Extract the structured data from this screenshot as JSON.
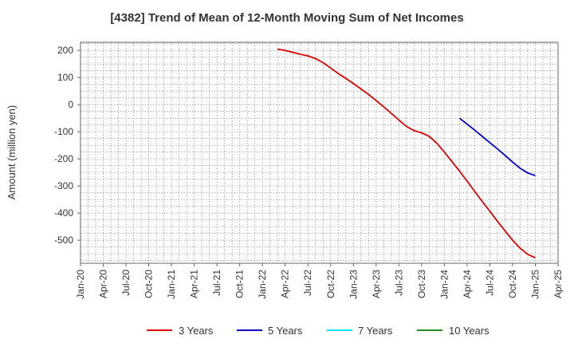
{
  "chart_data": {
    "type": "line",
    "title": "[4382]  Trend of Mean of 12-Month Moving Sum of Net Incomes",
    "xlabel": "",
    "ylabel": "Amount (million yen)",
    "ylim": [
      -585,
      230
    ],
    "yticks": [
      200,
      100,
      0,
      -100,
      -200,
      -300,
      -400,
      -500
    ],
    "xticks": [
      "Jan-20",
      "Apr-20",
      "Jul-20",
      "Oct-20",
      "Jan-21",
      "Apr-21",
      "Jul-21",
      "Oct-21",
      "Jan-22",
      "Apr-22",
      "Jul-22",
      "Oct-22",
      "Jan-23",
      "Apr-23",
      "Jul-23",
      "Oct-23",
      "Jan-24",
      "Apr-24",
      "Jul-24",
      "Oct-24",
      "Jan-25",
      "Apr-25"
    ],
    "grid": true,
    "legend_position": "bottom",
    "series": [
      {
        "name": "3 Years",
        "color": "#dd0000",
        "points": [
          [
            "Mar-22",
            205
          ],
          [
            "Apr-22",
            200
          ],
          [
            "May-22",
            193
          ],
          [
            "Jun-22",
            186
          ],
          [
            "Jul-22",
            180
          ],
          [
            "Aug-22",
            170
          ],
          [
            "Sep-22",
            155
          ],
          [
            "Oct-22",
            135
          ],
          [
            "Nov-22",
            115
          ],
          [
            "Dec-22",
            97
          ],
          [
            "Jan-23",
            78
          ],
          [
            "Feb-23",
            58
          ],
          [
            "Mar-23",
            38
          ],
          [
            "Apr-23",
            15
          ],
          [
            "May-23",
            -8
          ],
          [
            "Jun-23",
            -32
          ],
          [
            "Jul-23",
            -57
          ],
          [
            "Aug-23",
            -80
          ],
          [
            "Sep-23",
            -96
          ],
          [
            "Oct-23",
            -104
          ],
          [
            "Nov-23",
            -117
          ],
          [
            "Dec-23",
            -142
          ],
          [
            "Jan-24",
            -175
          ],
          [
            "Feb-24",
            -210
          ],
          [
            "Mar-24",
            -245
          ],
          [
            "Apr-24",
            -282
          ],
          [
            "May-24",
            -320
          ],
          [
            "Jun-24",
            -357
          ],
          [
            "Jul-24",
            -393
          ],
          [
            "Aug-24",
            -430
          ],
          [
            "Sep-24",
            -465
          ],
          [
            "Oct-24",
            -500
          ],
          [
            "Nov-24",
            -530
          ],
          [
            "Dec-24",
            -552
          ],
          [
            "Jan-25",
            -565
          ]
        ]
      },
      {
        "name": "5 Years",
        "color": "#0000cc",
        "points": [
          [
            "Mar-24",
            -50
          ],
          [
            "Apr-24",
            -72
          ],
          [
            "May-24",
            -94
          ],
          [
            "Jun-24",
            -117
          ],
          [
            "Jul-24",
            -140
          ],
          [
            "Aug-24",
            -163
          ],
          [
            "Sep-24",
            -187
          ],
          [
            "Oct-24",
            -212
          ],
          [
            "Nov-24",
            -235
          ],
          [
            "Dec-24",
            -252
          ],
          [
            "Jan-25",
            -262
          ]
        ]
      },
      {
        "name": "7 Years",
        "color": "#00e5ff",
        "points": []
      },
      {
        "name": "10 Years",
        "color": "#228b22",
        "points": []
      }
    ]
  }
}
